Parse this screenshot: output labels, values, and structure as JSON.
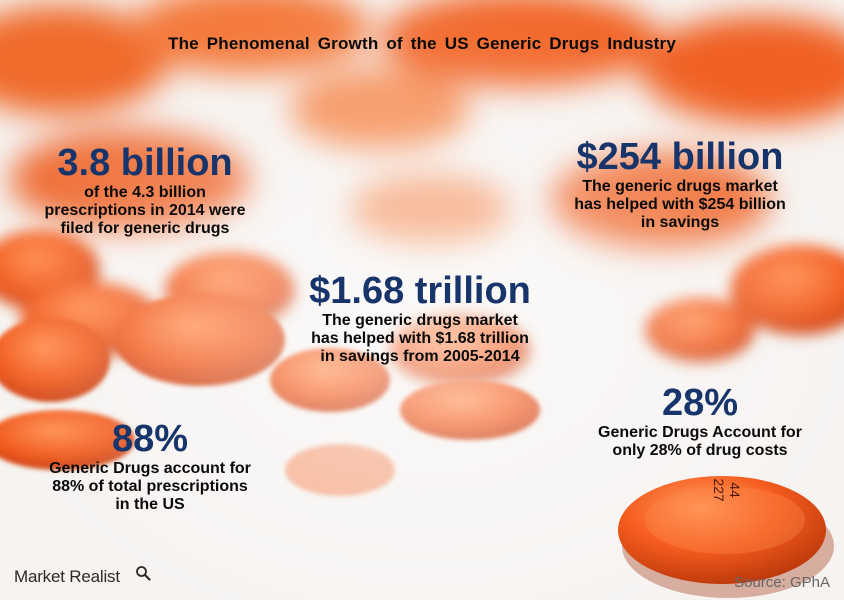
{
  "title": "The Phenomenal  Growth of the US Generic Drugs Industry",
  "stats": {
    "a": {
      "value": "3.8 billion",
      "lines": [
        "of the 4.3 billion",
        "prescriptions in 2014 were",
        "filed for generic drugs"
      ]
    },
    "b": {
      "value": "$254 billion",
      "lines": [
        "The generic drugs market",
        "has helped with $254 billion",
        "in savings"
      ]
    },
    "c": {
      "value": "$1.68 trillion",
      "lines": [
        "The generic drugs market",
        "has helped with $1.68 trillion",
        "in savings from 2005-2014"
      ]
    },
    "d": {
      "value": "88%",
      "lines": [
        "Generic Drugs account for",
        "88% of total prescriptions",
        "in the US"
      ]
    },
    "e": {
      "value": "28%",
      "lines": [
        "Generic Drugs Account for",
        "only 28% of drug costs"
      ]
    }
  },
  "pill_imprint": {
    "line1": "44",
    "line2": "227"
  },
  "footer": {
    "logo_text": "Market Realist",
    "logo_icon": "magnifier-icon",
    "source": "Source: GPhA"
  },
  "colors": {
    "headline": "#17356b",
    "pill": "#f2551a",
    "background": "#f6f3f1"
  }
}
